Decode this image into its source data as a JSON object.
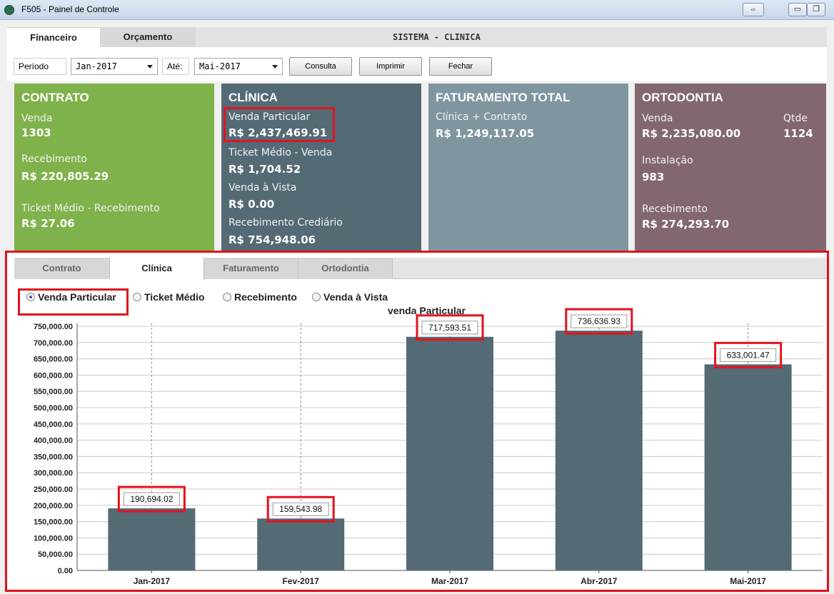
{
  "window": {
    "title": "F505 - Painel de Controle"
  },
  "top_tabs": {
    "financeiro": "Financeiro",
    "orcamento": "Orçamento",
    "system": "SISTEMA - CLINICA"
  },
  "filters": {
    "periodo_label": "Período",
    "from": "Jan-2017",
    "ate_label": "Até:",
    "to": "Mai-2017",
    "consulta": "Consulta",
    "imprimir": "Imprimir",
    "fechar": "Fechar"
  },
  "cards": {
    "contrato": {
      "title": "CONTRATO",
      "venda_label": "Venda",
      "venda": "1303",
      "recebimento_label": "Recebimento",
      "recebimento": "R$ 220,805.29",
      "ticket_label": "Ticket Médio - Recebimento",
      "ticket": "R$ 27.06",
      "color": "#7fb24a"
    },
    "clinica": {
      "title": "CLÍNICA",
      "venda_label": "Venda Particular",
      "venda": "R$ 2,437,469.91",
      "ticket_label": "Ticket Médio - Venda",
      "ticket": "R$ 1,704.52",
      "vista_label": "Venda à Vista",
      "vista": "R$ 0.00",
      "crediario_label": "Recebimento Crediário",
      "crediario": "R$ 754,948.06",
      "color": "#546a75"
    },
    "faturamento": {
      "title": "FATURAMENTO TOTAL",
      "label": "Clínica + Contrato",
      "value": "R$ 1,249,117.05",
      "color": "#7f96a0"
    },
    "ortodontia": {
      "title": "ORTODONTIA",
      "venda_label": "Venda",
      "venda": "R$ 2,235,080.00",
      "qtde_label": "Qtde",
      "qtde": "1124",
      "instalacao_label": "Instalação",
      "instalacao": "983",
      "recebimento_label": "Recebimento",
      "recebimento": "R$ 274,293.70",
      "color": "#826770"
    }
  },
  "sub_tabs": {
    "contrato": "Contrato",
    "clinica": "Clínica",
    "faturamento": "Faturamento",
    "ortodontia": "Ortodontia"
  },
  "radios": {
    "venda": "Venda Particular",
    "ticket": "Ticket Médio",
    "recebimento": "Recebimento",
    "vista": "Venda à Vista"
  },
  "chart_data": {
    "type": "bar",
    "title": "venda Particular",
    "categories": [
      "Jan-2017",
      "Fev-2017",
      "Mar-2017",
      "Abr-2017",
      "Mai-2017"
    ],
    "values": [
      190694.02,
      159543.98,
      717593.51,
      736636.93,
      633001.47
    ],
    "value_labels": [
      "190,694.02",
      "159,543.98",
      "717,593.51",
      "736,636.93",
      "633,001.47"
    ],
    "ylim": [
      0,
      750000
    ],
    "ytick_step": 50000,
    "bar_color": "#546a75",
    "grid": true
  }
}
